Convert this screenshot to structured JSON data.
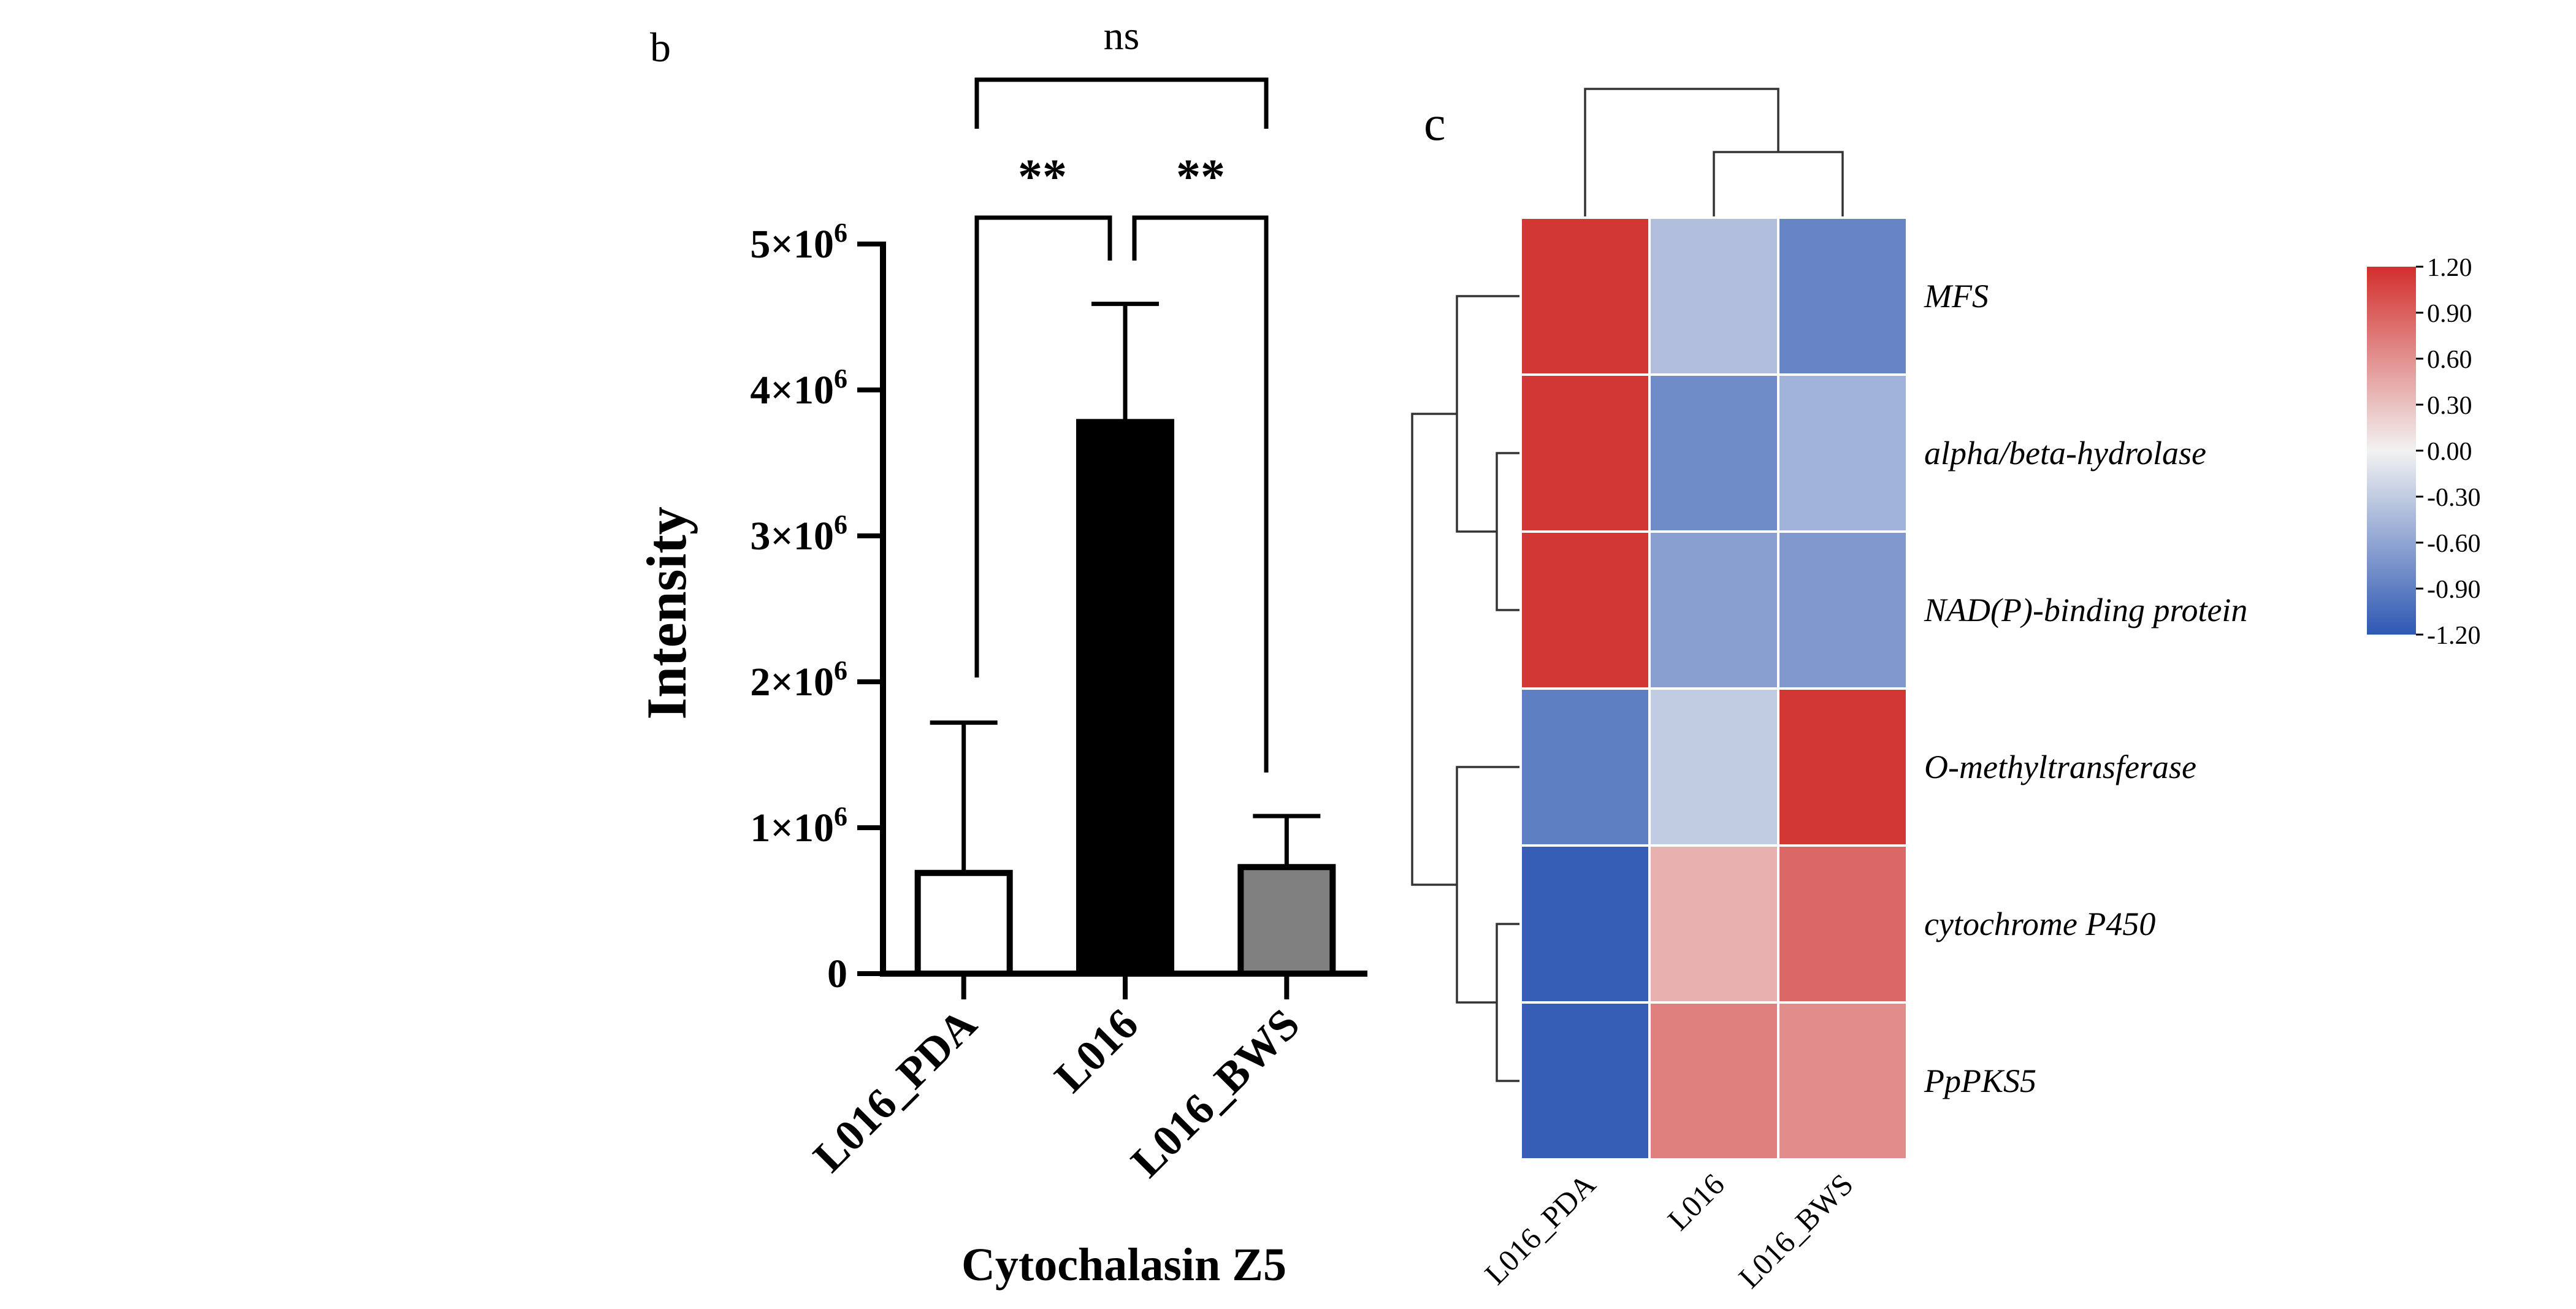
{
  "chart_data": [
    {
      "type": "bar",
      "panel_label": "b",
      "title": "Cytochalasin Z5",
      "xlabel": "Cytochalasin Z5",
      "ylabel": "Intensity",
      "categories": [
        "L016_PDA",
        "L016",
        "L016_BWS"
      ],
      "values": [
        690000,
        3780000,
        730000
      ],
      "error_upper": [
        1720000,
        4590000,
        1080000
      ],
      "bar_colors": [
        "#ffffff",
        "#000000",
        "#808080"
      ],
      "ylim": [
        0,
        5000000
      ],
      "yticks": [
        {
          "value": 0,
          "base": "0",
          "exp": ""
        },
        {
          "value": 1000000,
          "base": "1×10",
          "exp": "6"
        },
        {
          "value": 2000000,
          "base": "2×10",
          "exp": "6"
        },
        {
          "value": 3000000,
          "base": "3×10",
          "exp": "6"
        },
        {
          "value": 4000000,
          "base": "4×10",
          "exp": "6"
        },
        {
          "value": 5000000,
          "base": "5×10",
          "exp": "6"
        }
      ],
      "significance": [
        {
          "from": 0,
          "to": 1,
          "label": "**"
        },
        {
          "from": 1,
          "to": 2,
          "label": "**"
        },
        {
          "from": 0,
          "to": 2,
          "label": "ns"
        }
      ]
    },
    {
      "type": "heatmap",
      "panel_label": "c",
      "columns": [
        "L016_PDA",
        "L016",
        "L016_BWS"
      ],
      "rows": [
        "MFS",
        "alpha/beta-hydrolase",
        "NAD(P)-binding protein",
        "O-methyltransferase",
        "cytochrome P450",
        "PpPKS5"
      ],
      "values": [
        [
          1.15,
          -0.4,
          -0.85
        ],
        [
          1.15,
          -0.8,
          -0.5
        ],
        [
          1.15,
          -0.65,
          -0.7
        ],
        [
          -0.9,
          -0.3,
          1.15
        ],
        [
          -1.15,
          0.4,
          0.85
        ],
        [
          -1.15,
          0.7,
          0.62
        ]
      ],
      "color_range": [
        -1.2,
        1.2
      ],
      "colorbar_ticks": [
        "1.20",
        "0.90",
        "0.60",
        "0.30",
        "0.00",
        "-0.30",
        "-0.60",
        "-0.90",
        "-1.20"
      ],
      "colors": {
        "low": "#2e58b3",
        "mid": "#f2f2f2",
        "high": "#d22f2c"
      }
    }
  ]
}
